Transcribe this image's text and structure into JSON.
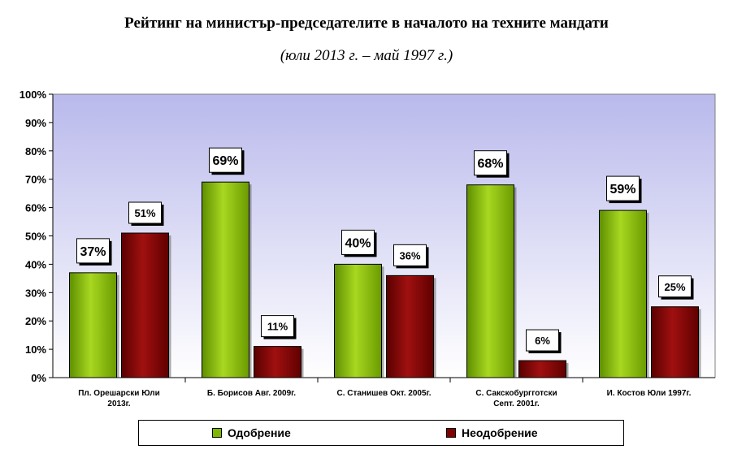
{
  "chart_data": {
    "type": "bar",
    "title": "Рейтинг на министър-председателите в началото на техните мандати",
    "subtitle": "(юли 2013 г. – май 1997 г.)",
    "categories": [
      [
        "Пл. Орешарски Юли",
        "2013г."
      ],
      [
        "Б. Борисов Авг. 2009г."
      ],
      [
        "С. Станишев Окт. 2005г."
      ],
      [
        "С. Сакскобургготски",
        "Септ. 2001г."
      ],
      [
        "И. Костов Юли 1997г."
      ]
    ],
    "series": [
      {
        "name": "Одобрение",
        "values": [
          37,
          69,
          40,
          68,
          59
        ],
        "labels": [
          "37%",
          "69%",
          "40%",
          "68%",
          "59%"
        ],
        "color": "#7fb800"
      },
      {
        "name": "Неодобрение",
        "values": [
          51,
          11,
          36,
          6,
          25
        ],
        "labels": [
          "51%",
          "11%",
          "36%",
          "6%",
          "25%"
        ],
        "color": "#800000"
      }
    ],
    "ylim": [
      0,
      100
    ],
    "yticks": [
      "0%",
      "10%",
      "20%",
      "30%",
      "40%",
      "50%",
      "60%",
      "70%",
      "80%",
      "90%",
      "100%"
    ],
    "plot_background": "#c8c8f0",
    "grid": false,
    "legend_position": "bottom"
  }
}
